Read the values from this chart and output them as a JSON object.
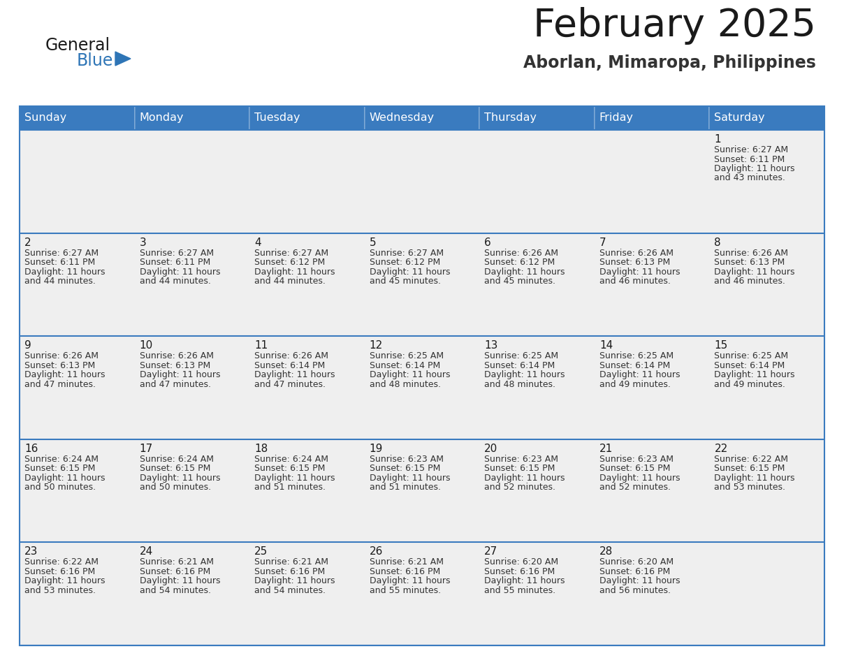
{
  "title": "February 2025",
  "subtitle": "Aborlan, Mimaropa, Philippines",
  "header_bg": "#3a7bbf",
  "header_text": "#ffffff",
  "days_of_week": [
    "Sunday",
    "Monday",
    "Tuesday",
    "Wednesday",
    "Thursday",
    "Friday",
    "Saturday"
  ],
  "cell_bg_light": "#efefef",
  "cell_bg_white": "#ffffff",
  "cell_border_color": "#3a7bbf",
  "day_number_color": "#1a1a1a",
  "info_text_color": "#333333",
  "calendar": [
    [
      null,
      null,
      null,
      null,
      null,
      null,
      {
        "day": "1",
        "sunrise": "6:27 AM",
        "sunset": "6:11 PM",
        "daylight_h": "11 hours",
        "daylight_m": "43 minutes"
      }
    ],
    [
      {
        "day": "2",
        "sunrise": "6:27 AM",
        "sunset": "6:11 PM",
        "daylight_h": "11 hours",
        "daylight_m": "44 minutes"
      },
      {
        "day": "3",
        "sunrise": "6:27 AM",
        "sunset": "6:11 PM",
        "daylight_h": "11 hours",
        "daylight_m": "44 minutes"
      },
      {
        "day": "4",
        "sunrise": "6:27 AM",
        "sunset": "6:12 PM",
        "daylight_h": "11 hours",
        "daylight_m": "44 minutes"
      },
      {
        "day": "5",
        "sunrise": "6:27 AM",
        "sunset": "6:12 PM",
        "daylight_h": "11 hours",
        "daylight_m": "45 minutes"
      },
      {
        "day": "6",
        "sunrise": "6:26 AM",
        "sunset": "6:12 PM",
        "daylight_h": "11 hours",
        "daylight_m": "45 minutes"
      },
      {
        "day": "7",
        "sunrise": "6:26 AM",
        "sunset": "6:13 PM",
        "daylight_h": "11 hours",
        "daylight_m": "46 minutes"
      },
      {
        "day": "8",
        "sunrise": "6:26 AM",
        "sunset": "6:13 PM",
        "daylight_h": "11 hours",
        "daylight_m": "46 minutes"
      }
    ],
    [
      {
        "day": "9",
        "sunrise": "6:26 AM",
        "sunset": "6:13 PM",
        "daylight_h": "11 hours",
        "daylight_m": "47 minutes"
      },
      {
        "day": "10",
        "sunrise": "6:26 AM",
        "sunset": "6:13 PM",
        "daylight_h": "11 hours",
        "daylight_m": "47 minutes"
      },
      {
        "day": "11",
        "sunrise": "6:26 AM",
        "sunset": "6:14 PM",
        "daylight_h": "11 hours",
        "daylight_m": "47 minutes"
      },
      {
        "day": "12",
        "sunrise": "6:25 AM",
        "sunset": "6:14 PM",
        "daylight_h": "11 hours",
        "daylight_m": "48 minutes"
      },
      {
        "day": "13",
        "sunrise": "6:25 AM",
        "sunset": "6:14 PM",
        "daylight_h": "11 hours",
        "daylight_m": "48 minutes"
      },
      {
        "day": "14",
        "sunrise": "6:25 AM",
        "sunset": "6:14 PM",
        "daylight_h": "11 hours",
        "daylight_m": "49 minutes"
      },
      {
        "day": "15",
        "sunrise": "6:25 AM",
        "sunset": "6:14 PM",
        "daylight_h": "11 hours",
        "daylight_m": "49 minutes"
      }
    ],
    [
      {
        "day": "16",
        "sunrise": "6:24 AM",
        "sunset": "6:15 PM",
        "daylight_h": "11 hours",
        "daylight_m": "50 minutes"
      },
      {
        "day": "17",
        "sunrise": "6:24 AM",
        "sunset": "6:15 PM",
        "daylight_h": "11 hours",
        "daylight_m": "50 minutes"
      },
      {
        "day": "18",
        "sunrise": "6:24 AM",
        "sunset": "6:15 PM",
        "daylight_h": "11 hours",
        "daylight_m": "51 minutes"
      },
      {
        "day": "19",
        "sunrise": "6:23 AM",
        "sunset": "6:15 PM",
        "daylight_h": "11 hours",
        "daylight_m": "51 minutes"
      },
      {
        "day": "20",
        "sunrise": "6:23 AM",
        "sunset": "6:15 PM",
        "daylight_h": "11 hours",
        "daylight_m": "52 minutes"
      },
      {
        "day": "21",
        "sunrise": "6:23 AM",
        "sunset": "6:15 PM",
        "daylight_h": "11 hours",
        "daylight_m": "52 minutes"
      },
      {
        "day": "22",
        "sunrise": "6:22 AM",
        "sunset": "6:15 PM",
        "daylight_h": "11 hours",
        "daylight_m": "53 minutes"
      }
    ],
    [
      {
        "day": "23",
        "sunrise": "6:22 AM",
        "sunset": "6:16 PM",
        "daylight_h": "11 hours",
        "daylight_m": "53 minutes"
      },
      {
        "day": "24",
        "sunrise": "6:21 AM",
        "sunset": "6:16 PM",
        "daylight_h": "11 hours",
        "daylight_m": "54 minutes"
      },
      {
        "day": "25",
        "sunrise": "6:21 AM",
        "sunset": "6:16 PM",
        "daylight_h": "11 hours",
        "daylight_m": "54 minutes"
      },
      {
        "day": "26",
        "sunrise": "6:21 AM",
        "sunset": "6:16 PM",
        "daylight_h": "11 hours",
        "daylight_m": "55 minutes"
      },
      {
        "day": "27",
        "sunrise": "6:20 AM",
        "sunset": "6:16 PM",
        "daylight_h": "11 hours",
        "daylight_m": "55 minutes"
      },
      {
        "day": "28",
        "sunrise": "6:20 AM",
        "sunset": "6:16 PM",
        "daylight_h": "11 hours",
        "daylight_m": "56 minutes"
      },
      null
    ]
  ],
  "logo_general_color": "#1a1a1a",
  "logo_blue_color": "#2e75b6",
  "logo_triangle_color": "#2e75b6"
}
